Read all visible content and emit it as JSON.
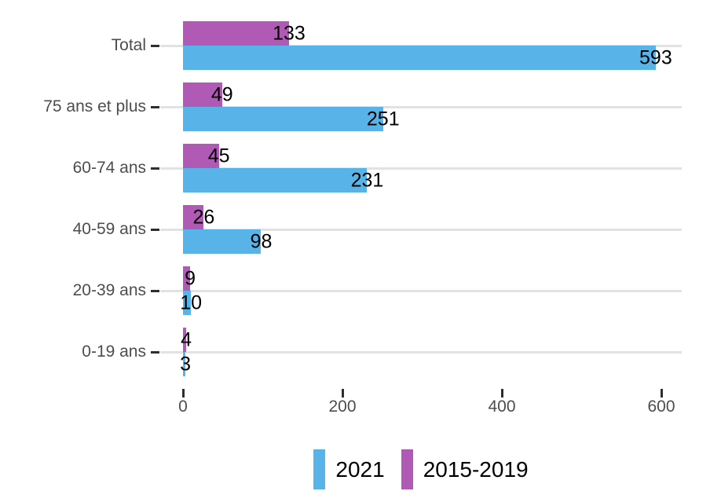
{
  "chart_data": {
    "type": "bar",
    "orientation": "horizontal",
    "title": "",
    "xlabel": "",
    "ylabel": "",
    "categories": [
      "Total",
      "75 ans et plus",
      "60-74 ans",
      "40-59 ans",
      "20-39 ans",
      "0-19 ans"
    ],
    "series": [
      {
        "name": "2015-2019",
        "color": "#B05AB5",
        "position_in_group": "top",
        "values": [
          133,
          49,
          45,
          26,
          9,
          4
        ]
      },
      {
        "name": "2021",
        "color": "#58B4E8",
        "position_in_group": "bottom",
        "values": [
          593,
          251,
          231,
          98,
          10,
          3
        ]
      }
    ],
    "bar_value_labels": true,
    "x_axis": {
      "range": [
        0,
        600
      ],
      "ticks": [
        0,
        200,
        400,
        600
      ],
      "tick_labels": [
        "0",
        "200",
        "400",
        "600"
      ]
    },
    "grid": "horizontal-major-only",
    "background": "#FFFFFF",
    "legend": {
      "position": "bottom-center",
      "items": [
        {
          "label": "2021",
          "color": "#58B4E8"
        },
        {
          "label": "2015-2019",
          "color": "#B05AB5"
        }
      ]
    },
    "style": {
      "axis_text_color": "#4D4D4D",
      "tick_mark_color": "#2E2E2E",
      "gridline_color": "#E2E2E2",
      "bar_label_color": "#000000"
    }
  }
}
